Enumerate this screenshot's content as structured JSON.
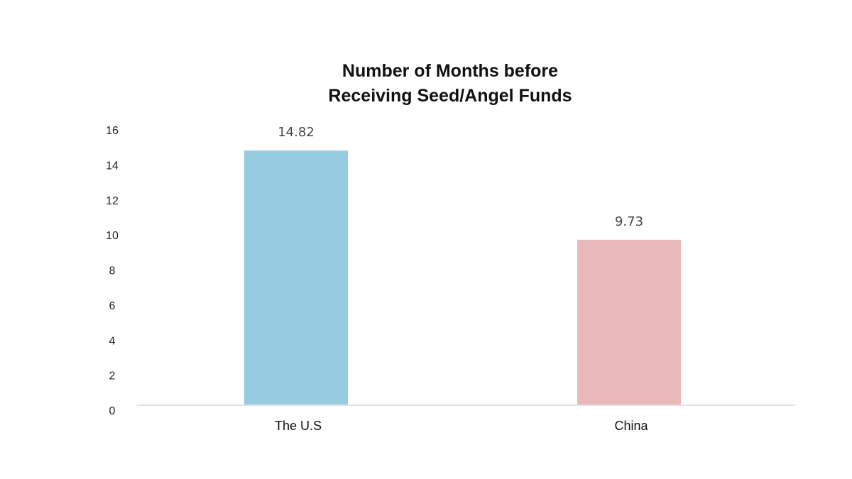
{
  "chart_data": {
    "type": "bar",
    "title_lines": [
      "Number of Months before",
      "Receiving Seed/Angel Funds"
    ],
    "categories": [
      "The U.S",
      "China"
    ],
    "values": [
      14.82,
      9.73
    ],
    "data_labels": [
      "14.82",
      "9.73"
    ],
    "colors": [
      "#96cbe0",
      "#e9b8b8"
    ],
    "yticks": [
      "0",
      "2",
      "4",
      "6",
      "8",
      "10",
      "12",
      "14",
      "16"
    ],
    "ylim": [
      0,
      16
    ],
    "grid": false,
    "legend": "none",
    "xlabel": "",
    "ylabel": ""
  }
}
